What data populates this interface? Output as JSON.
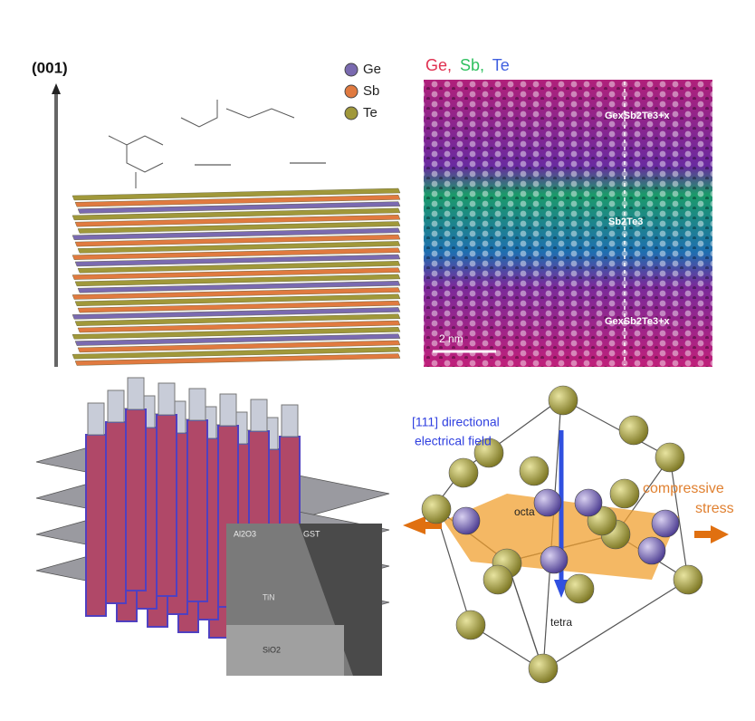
{
  "top_left": {
    "axis_label": "(001)",
    "legend": [
      "Ge",
      "Sb",
      "Te"
    ]
  },
  "top_right": {
    "header": [
      "Ge,",
      "Sb,",
      "Te"
    ],
    "labels": [
      "GexSb2Te3+x",
      "Sb2Te3",
      "GexSb2Te3+x"
    ],
    "scale_bar": "2 nm"
  },
  "bottom_left": {
    "inset_labels": [
      "Al2O3",
      "GST",
      "TiN",
      "SiO2"
    ]
  },
  "bottom_right": {
    "field_label": [
      "[111] directional",
      "electrical field"
    ],
    "stress_label": [
      "compressive",
      "stress"
    ],
    "octa": "octa",
    "tetra": "tetra"
  }
}
